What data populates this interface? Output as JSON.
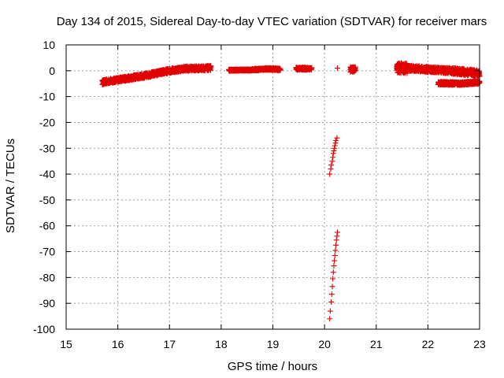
{
  "chart_data": {
    "type": "scatter",
    "title": "Day 134 of 2015, Sidereal Day-to-day VTEC variation (SDTVAR) for receiver mars",
    "xlabel": "GPS time / hours",
    "ylabel": "SDTVAR / TECUs",
    "xlim": [
      15,
      23
    ],
    "ylim": [
      -100,
      10
    ],
    "xticks": [
      "15",
      "16",
      "17",
      "18",
      "19",
      "20",
      "21",
      "22",
      "23"
    ],
    "yticks": [
      "10",
      "0",
      "-10",
      "-20",
      "-30",
      "-40",
      "-50",
      "-60",
      "-70",
      "-80",
      "-90",
      "-100"
    ],
    "grid": true,
    "marker": "+",
    "color": "#e00000",
    "series": [
      {
        "name": "arc-15.7-17.8",
        "dense": true,
        "x_range": [
          15.7,
          17.8
        ],
        "spread": 1.8,
        "trend": [
          [
            15.7,
            -4.5
          ],
          [
            16.0,
            -3.5
          ],
          [
            16.5,
            -2.0
          ],
          [
            17.0,
            0.0
          ],
          [
            17.3,
            0.8
          ],
          [
            17.8,
            1.0
          ]
        ]
      },
      {
        "name": "arc-18.15-18.6",
        "dense": true,
        "x_range": [
          18.15,
          18.6
        ],
        "spread": 0.6,
        "trend": [
          [
            18.15,
            0.2
          ],
          [
            18.6,
            0.3
          ]
        ]
      },
      {
        "name": "arc-18.6-19.15",
        "dense": true,
        "x_range": [
          18.6,
          19.15
        ],
        "spread": 0.8,
        "trend": [
          [
            18.6,
            0.4
          ],
          [
            18.9,
            0.7
          ],
          [
            19.15,
            0.5
          ]
        ]
      },
      {
        "name": "arc-19.45-19.75",
        "dense": true,
        "x_range": [
          19.45,
          19.75
        ],
        "spread": 1.0,
        "trend": [
          [
            19.45,
            0.8
          ],
          [
            19.75,
            0.8
          ]
        ]
      },
      {
        "name": "arc-20.25",
        "dense": false,
        "points": [
          [
            20.25,
            1.0
          ]
        ]
      },
      {
        "name": "arc-20.5-20.6",
        "dense": true,
        "x_range": [
          20.5,
          20.6
        ],
        "spread": 2.0,
        "trend": [
          [
            20.5,
            0.5
          ],
          [
            20.6,
            0.5
          ]
        ]
      },
      {
        "name": "steep-upper",
        "dense": false,
        "points": [
          [
            20.1,
            -40
          ],
          [
            20.12,
            -38
          ],
          [
            20.13,
            -36.5
          ],
          [
            20.15,
            -35
          ],
          [
            20.16,
            -33.5
          ],
          [
            20.17,
            -32
          ],
          [
            20.18,
            -31
          ],
          [
            20.19,
            -30
          ],
          [
            20.2,
            -29
          ],
          [
            20.21,
            -28
          ],
          [
            20.22,
            -27
          ],
          [
            20.24,
            -26
          ]
        ]
      },
      {
        "name": "steep-lower",
        "dense": false,
        "points": [
          [
            20.1,
            -96
          ],
          [
            20.11,
            -93
          ],
          [
            20.13,
            -89.5
          ],
          [
            20.14,
            -86.5
          ],
          [
            20.15,
            -83.5
          ],
          [
            20.16,
            -80.5
          ],
          [
            20.17,
            -78
          ],
          [
            20.18,
            -75.5
          ],
          [
            20.19,
            -73.5
          ],
          [
            20.2,
            -71.5
          ],
          [
            20.21,
            -69.5
          ],
          [
            20.22,
            -67.5
          ],
          [
            20.23,
            -65.5
          ],
          [
            20.24,
            -64
          ],
          [
            20.25,
            -62.5
          ]
        ]
      },
      {
        "name": "arc-21.4-22.4",
        "dense": true,
        "x_range": [
          21.4,
          22.4
        ],
        "spread": 2.2,
        "trend": [
          [
            21.4,
            1.5
          ],
          [
            21.6,
            1.0
          ],
          [
            22.0,
            0.5
          ],
          [
            22.4,
            0.0
          ]
        ]
      },
      {
        "name": "arc-21.4-21.6-thick",
        "dense": true,
        "x_range": [
          21.4,
          21.6
        ],
        "spread": 4.0,
        "trend": [
          [
            21.4,
            1.0
          ],
          [
            21.6,
            1.0
          ]
        ]
      },
      {
        "name": "arc-22.4-23.0-upper",
        "dense": true,
        "x_range": [
          22.4,
          23.0
        ],
        "spread": 2.5,
        "trend": [
          [
            22.4,
            0.0
          ],
          [
            22.7,
            -0.5
          ],
          [
            23.0,
            -1.0
          ]
        ]
      },
      {
        "name": "arc-22.2-23.0-lower",
        "dense": true,
        "x_range": [
          22.2,
          23.0
        ],
        "spread": 1.2,
        "trend": [
          [
            22.2,
            -4.8
          ],
          [
            22.6,
            -5.0
          ],
          [
            23.0,
            -4.5
          ]
        ]
      }
    ]
  }
}
